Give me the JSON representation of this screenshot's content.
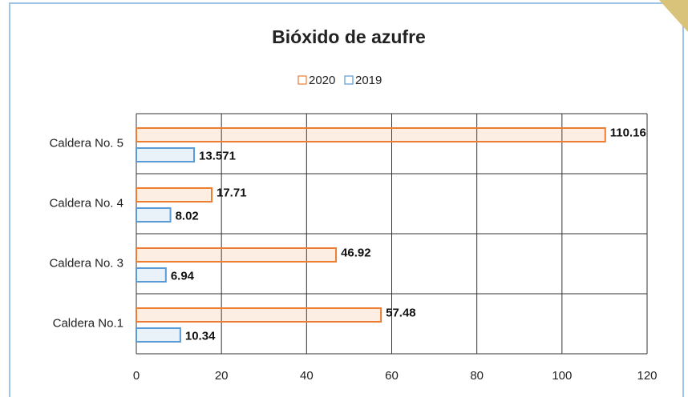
{
  "chart_data": {
    "type": "hbar",
    "title": "Bióxido de azufre",
    "categories": [
      "Caldera No. 5",
      "Caldera No. 4",
      "Caldera No. 3",
      "Caldera No.1"
    ],
    "series": [
      {
        "name": "2020",
        "color": "#ed7d31",
        "values": [
          110.16,
          17.71,
          46.92,
          57.48
        ]
      },
      {
        "name": "2019",
        "color": "#5b9bd5",
        "values": [
          13.571,
          8.02,
          6.94,
          10.34
        ]
      }
    ],
    "xlim": [
      0,
      120
    ],
    "xticks": [
      0,
      20,
      40,
      60,
      80,
      100,
      120
    ],
    "grid": true,
    "legend": "top"
  }
}
